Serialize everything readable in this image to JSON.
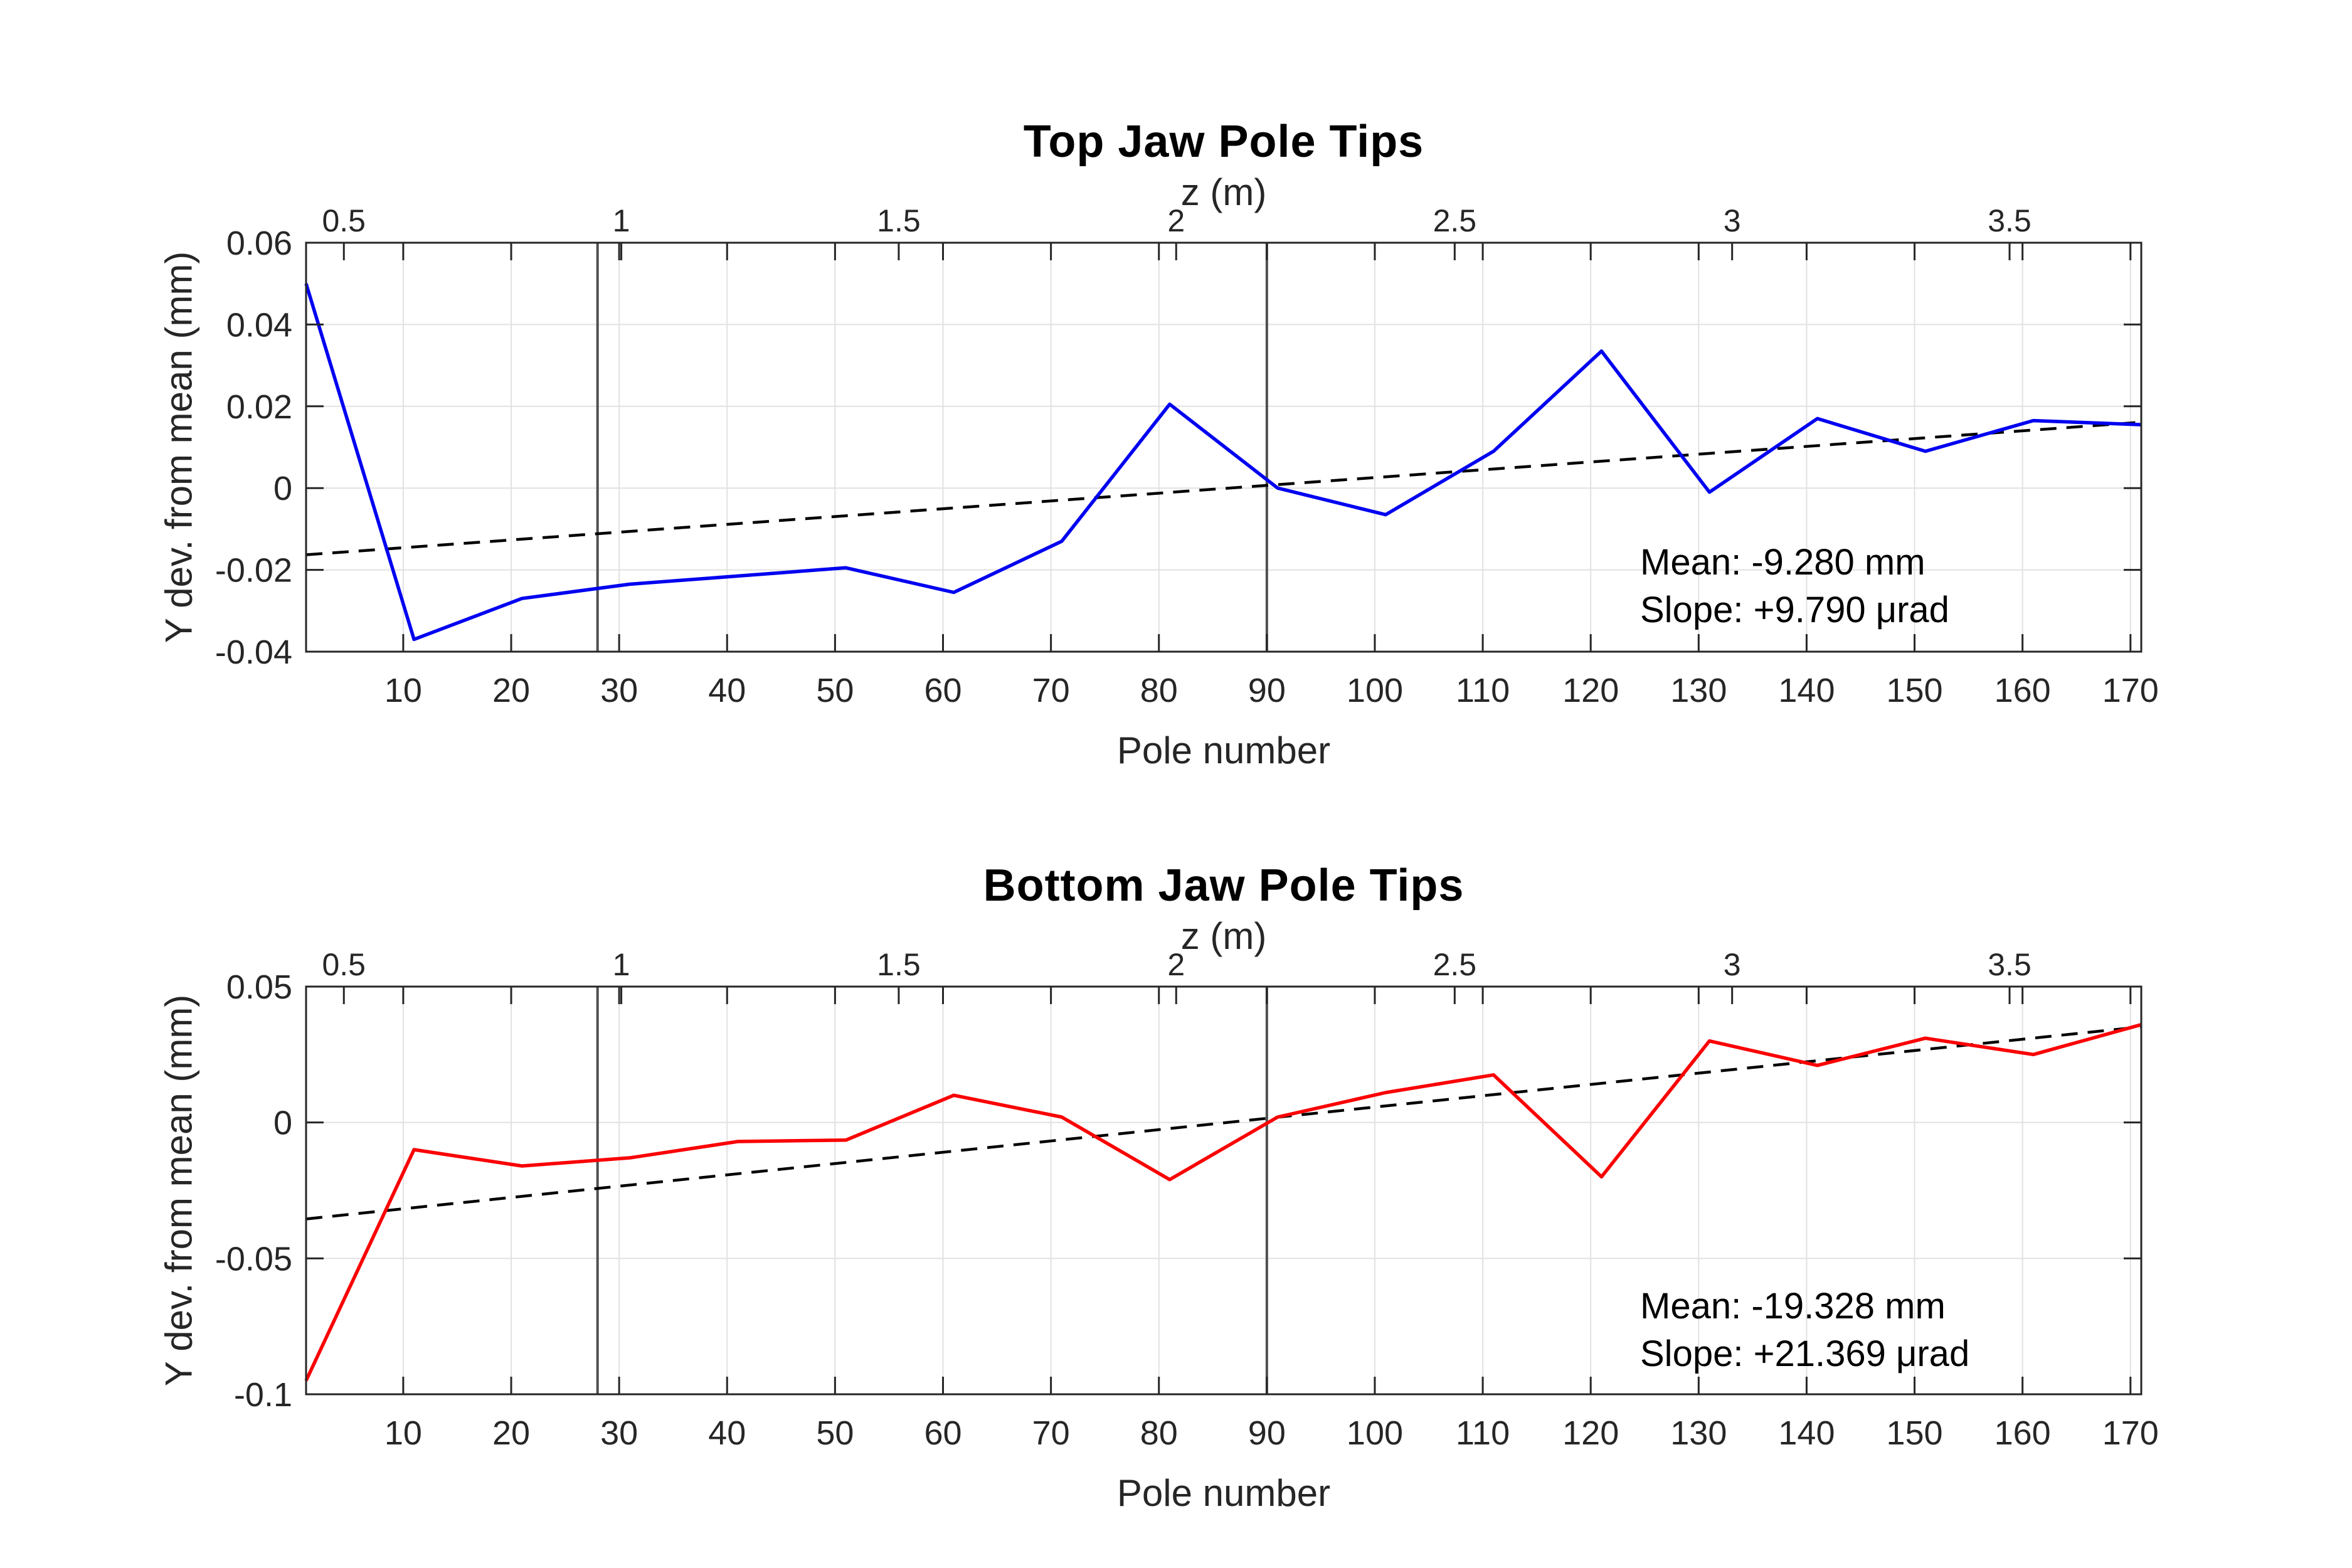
{
  "figure": {
    "background": "#ffffff",
    "colors": {
      "axis": "#262626",
      "grid": "#e1e1e1",
      "tick_label": "#262626",
      "vline": "#4f4f4f",
      "top_series": "#0000f0",
      "bottom_series": "#fa0000",
      "trend": "#000000"
    }
  },
  "chart_data": [
    {
      "type": "line",
      "id": "top-jaw",
      "title": "Top Jaw Pole Tips",
      "xlabel": "Pole number",
      "ylabel": "Y dev. from mean (mm)",
      "x2label": "z (m)",
      "grid": true,
      "legend": "none",
      "xlim": [
        1,
        171
      ],
      "ylim": [
        -0.04,
        0.06
      ],
      "x": [
        1,
        11,
        21,
        31,
        41,
        51,
        61,
        71,
        81,
        91,
        101,
        111,
        121,
        131,
        141,
        151,
        161,
        171
      ],
      "series": [
        {
          "name": "top-pole-tip-deviation",
          "color": "#0000f0",
          "style": "solid",
          "x": [
            1,
            11,
            21,
            31,
            41,
            51,
            61,
            71,
            81,
            91,
            101,
            111,
            121,
            131,
            141,
            151,
            161,
            171
          ],
          "values": [
            0.05,
            -0.037,
            -0.027,
            -0.0235,
            -0.0215,
            -0.0195,
            -0.0255,
            -0.013,
            0.0205,
            0.0,
            -0.0065,
            0.009,
            0.0335,
            -0.001,
            0.017,
            0.009,
            0.0165,
            0.0155
          ]
        },
        {
          "name": "top-linear-fit",
          "color": "#000000",
          "style": "dashed",
          "x": [
            1,
            171
          ],
          "values": [
            -0.0163,
            0.0161
          ]
        }
      ],
      "x_ticks": [
        10,
        20,
        30,
        40,
        50,
        60,
        70,
        80,
        90,
        100,
        110,
        120,
        130,
        140,
        150,
        160,
        170
      ],
      "x_tick_labels": [
        "10",
        "20",
        "30",
        "40",
        "50",
        "60",
        "70",
        "80",
        "90",
        "100",
        "110",
        "120",
        "130",
        "140",
        "150",
        "160",
        "170"
      ],
      "y_ticks": [
        0.06,
        0.04,
        0.02,
        0,
        -0.02,
        -0.04
      ],
      "y_tick_labels": [
        "0.06",
        "0.04",
        "0.02",
        "0",
        "-0.02",
        "-0.04"
      ],
      "z_ticks": [
        {
          "label": "0.5",
          "pole": 4.5
        },
        {
          "label": "1",
          "pole": 30.2
        },
        {
          "label": "1.5",
          "pole": 55.9
        },
        {
          "label": "2",
          "pole": 81.6
        },
        {
          "label": "2.5",
          "pole": 107.4
        },
        {
          "label": "3",
          "pole": 133.1
        },
        {
          "label": "3.5",
          "pole": 158.8
        }
      ],
      "vlines": [
        28,
        90
      ],
      "annotation": [
        "Mean: -9.280 mm",
        "Slope: +9.790 μrad"
      ]
    },
    {
      "type": "line",
      "id": "bottom-jaw",
      "title": "Bottom Jaw Pole Tips",
      "xlabel": "Pole number",
      "ylabel": "Y dev. from mean (mm)",
      "x2label": "z (m)",
      "grid": true,
      "legend": "none",
      "xlim": [
        1,
        171
      ],
      "ylim": [
        -0.1,
        0.05
      ],
      "x": [
        1,
        11,
        21,
        31,
        41,
        51,
        61,
        71,
        81,
        91,
        101,
        111,
        121,
        131,
        141,
        151,
        161,
        171
      ],
      "series": [
        {
          "name": "bottom-pole-tip-deviation",
          "color": "#fa0000",
          "style": "solid",
          "x": [
            1,
            11,
            21,
            31,
            41,
            51,
            61,
            71,
            81,
            91,
            101,
            111,
            121,
            131,
            141,
            151,
            161,
            171
          ],
          "values": [
            -0.095,
            -0.01,
            -0.016,
            -0.013,
            -0.007,
            -0.0065,
            0.01,
            0.002,
            -0.021,
            0.002,
            0.011,
            0.0175,
            -0.02,
            0.03,
            0.021,
            0.031,
            0.025,
            0.036
          ]
        },
        {
          "name": "bottom-linear-fit",
          "color": "#000000",
          "style": "dashed",
          "x": [
            1,
            171
          ],
          "values": [
            -0.0355,
            0.0352
          ]
        }
      ],
      "x_ticks": [
        10,
        20,
        30,
        40,
        50,
        60,
        70,
        80,
        90,
        100,
        110,
        120,
        130,
        140,
        150,
        160,
        170
      ],
      "x_tick_labels": [
        "10",
        "20",
        "30",
        "40",
        "50",
        "60",
        "70",
        "80",
        "90",
        "100",
        "110",
        "120",
        "130",
        "140",
        "150",
        "160",
        "170"
      ],
      "y_ticks": [
        0.05,
        0,
        -0.05,
        -0.1
      ],
      "y_tick_labels": [
        "0.05",
        "0",
        "-0.05",
        "-0.1"
      ],
      "z_ticks": [
        {
          "label": "0.5",
          "pole": 4.5
        },
        {
          "label": "1",
          "pole": 30.2
        },
        {
          "label": "1.5",
          "pole": 55.9
        },
        {
          "label": "2",
          "pole": 81.6
        },
        {
          "label": "2.5",
          "pole": 107.4
        },
        {
          "label": "3",
          "pole": 133.1
        },
        {
          "label": "3.5",
          "pole": 158.8
        }
      ],
      "vlines": [
        28,
        90
      ],
      "annotation": [
        "Mean: -19.328 mm",
        "Slope: +21.369 μrad"
      ]
    }
  ]
}
